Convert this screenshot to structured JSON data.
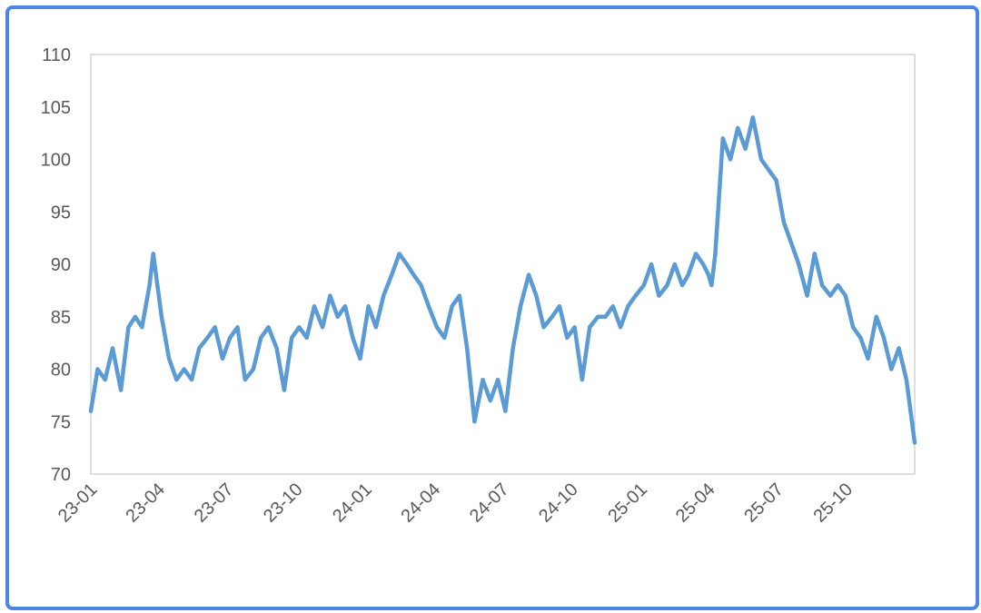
{
  "chart_data": {
    "type": "line",
    "title": "",
    "xlabel": "",
    "ylabel": "",
    "ylim": [
      70,
      110
    ],
    "y_ticks": [
      "70",
      "75",
      "80",
      "85",
      "90",
      "95",
      "100",
      "105",
      "110"
    ],
    "x_ticks": [
      "23-01",
      "23-04",
      "23-07",
      "23-10",
      "24-01",
      "24-04",
      "24-07",
      "24-10",
      "25-01",
      "25-04",
      "25-07",
      "25-10"
    ],
    "x_range": [
      "2023-01-01",
      "2025-12-31"
    ],
    "grid": false,
    "legend": "none",
    "colors": {
      "line": "#5b9bd5",
      "axis": "#bfbfbf",
      "frame": "#4a86e8"
    },
    "series": [
      {
        "x": [
          "2023-01-01",
          "2023-01-10",
          "2023-01-20",
          "2023-01-30",
          "2023-02-10",
          "2023-02-20",
          "2023-03-01",
          "2023-03-10",
          "2023-03-20",
          "2023-03-25",
          "2023-04-05",
          "2023-04-15",
          "2023-04-25",
          "2023-05-05",
          "2023-05-15",
          "2023-05-25",
          "2023-06-05",
          "2023-06-15",
          "2023-06-25",
          "2023-07-05",
          "2023-07-15",
          "2023-07-25",
          "2023-08-05",
          "2023-08-15",
          "2023-08-25",
          "2023-09-05",
          "2023-09-15",
          "2023-09-25",
          "2023-10-05",
          "2023-10-15",
          "2023-10-25",
          "2023-11-05",
          "2023-11-15",
          "2023-11-25",
          "2023-12-05",
          "2023-12-15",
          "2023-12-25",
          "2024-01-05",
          "2024-01-15",
          "2024-01-25",
          "2024-02-05",
          "2024-02-15",
          "2024-02-25",
          "2024-03-05",
          "2024-03-15",
          "2024-03-25",
          "2024-04-05",
          "2024-04-15",
          "2024-04-25",
          "2024-05-05",
          "2024-05-15",
          "2024-05-25",
          "2024-06-05",
          "2024-06-15",
          "2024-06-25",
          "2024-07-05",
          "2024-07-15",
          "2024-07-25",
          "2024-08-05",
          "2024-08-15",
          "2024-08-25",
          "2024-09-05",
          "2024-09-15",
          "2024-09-25",
          "2024-10-05",
          "2024-10-15",
          "2024-10-25",
          "2024-11-05",
          "2024-11-15",
          "2024-11-25",
          "2024-12-05",
          "2024-12-15",
          "2024-12-25",
          "2025-01-05",
          "2025-01-15",
          "2025-01-25",
          "2025-02-05",
          "2025-02-15",
          "2025-02-25",
          "2025-03-05",
          "2025-03-15",
          "2025-03-25",
          "2025-04-01",
          "2025-04-05",
          "2025-04-10",
          "2025-04-20",
          "2025-04-30",
          "2025-05-10",
          "2025-05-20",
          "2025-05-30",
          "2025-06-10",
          "2025-06-20",
          "2025-06-30",
          "2025-07-10",
          "2025-07-20",
          "2025-07-30",
          "2025-08-10",
          "2025-08-20",
          "2025-08-30",
          "2025-09-10",
          "2025-09-20",
          "2025-09-30",
          "2025-10-10",
          "2025-10-20",
          "2025-10-30",
          "2025-11-10",
          "2025-11-20",
          "2025-11-30",
          "2025-12-10",
          "2025-12-20",
          "2025-12-31"
        ],
        "y": [
          76,
          80,
          79,
          82,
          78,
          84,
          85,
          84,
          88,
          91,
          85,
          81,
          79,
          80,
          79,
          82,
          83,
          84,
          81,
          83,
          84,
          79,
          80,
          83,
          84,
          82,
          78,
          83,
          84,
          83,
          86,
          84,
          87,
          85,
          86,
          83,
          81,
          86,
          84,
          87,
          89,
          91,
          90,
          89,
          88,
          86,
          84,
          83,
          86,
          87,
          82,
          75,
          79,
          77,
          79,
          76,
          82,
          86,
          89,
          87,
          84,
          85,
          86,
          83,
          84,
          79,
          84,
          85,
          85,
          86,
          84,
          86,
          87,
          88,
          90,
          87,
          88,
          90,
          88,
          89,
          91,
          90,
          89,
          88,
          91,
          102,
          100,
          103,
          101,
          104,
          100,
          99,
          98,
          94,
          92,
          90,
          87,
          91,
          88,
          87,
          88,
          87,
          84,
          83,
          81,
          85,
          83,
          80,
          82,
          79,
          73
        ]
      }
    ]
  }
}
